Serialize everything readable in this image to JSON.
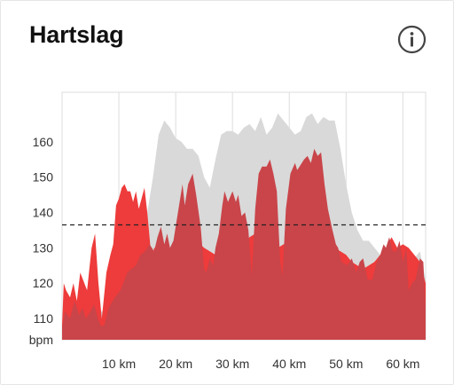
{
  "card": {
    "title": "Hartslag",
    "info_icon": "info-circle-icon"
  },
  "colors": {
    "primary_area": "#c9454a",
    "bright_area": "#ee3b3b",
    "comparison_area": "#d9d9d9",
    "average_line": "#222222",
    "grid": "#dddddd"
  },
  "chart_data": {
    "type": "area",
    "y_unit_label": "bpm",
    "ylim": [
      104,
      174
    ],
    "y_ticks": [
      110,
      120,
      130,
      140,
      150,
      160
    ],
    "y_tick_labels": [
      "110",
      "120",
      "130",
      "140",
      "150",
      "160"
    ],
    "xlim": [
      0,
      64
    ],
    "x_ticks": [
      10,
      20,
      30,
      40,
      50,
      60
    ],
    "x_tick_labels": [
      "10 km",
      "20 km",
      "30 km",
      "40 km",
      "50 km",
      "60 km"
    ],
    "average_line_value": 136.5,
    "grid": "vertical",
    "series": [
      {
        "key": "comparison",
        "x": [
          0,
          1,
          3,
          5,
          7,
          8,
          9,
          10,
          11,
          12,
          13,
          14,
          15,
          16,
          17,
          18,
          19,
          20,
          21,
          22,
          23,
          24,
          25,
          26,
          27,
          28,
          29,
          30,
          31,
          32,
          33,
          34,
          35,
          36,
          37,
          38,
          39,
          40,
          41,
          42,
          43,
          44,
          45,
          46,
          47,
          48,
          49,
          50,
          51,
          52,
          53,
          54,
          56,
          58,
          60,
          61,
          62,
          63,
          64
        ],
        "y": [
          108,
          112,
          111,
          114,
          112,
          113,
          115,
          118,
          120,
          122,
          124,
          130,
          140,
          150,
          162,
          166,
          164,
          161,
          160,
          158,
          158,
          156,
          150,
          147,
          155,
          162,
          163,
          163,
          162,
          164,
          165,
          163,
          167,
          162,
          164,
          168,
          166,
          164,
          162,
          163,
          167,
          168,
          165,
          167,
          166,
          166,
          158,
          148,
          140,
          135,
          132,
          132,
          128,
          128,
          128,
          125,
          127,
          129,
          121
        ]
      },
      {
        "key": "bright",
        "x": [
          0,
          0.3,
          0.7,
          1.4,
          2,
          2.6,
          3.2,
          4.4,
          5.2,
          5.8,
          6.4,
          7,
          7.8,
          8.5,
          9.0,
          9.5,
          10.0,
          10.5,
          11.0,
          11.5,
          12.0,
          12.5,
          13.0,
          13.5,
          14.0,
          14.5,
          15.0,
          15.8,
          16.2,
          17,
          18,
          19,
          20,
          21,
          23,
          25,
          27,
          28,
          29,
          30,
          31,
          33,
          35,
          36,
          38,
          40,
          42,
          43,
          45,
          46,
          47,
          48,
          50,
          51,
          53,
          55,
          56,
          57,
          58,
          59,
          60,
          61,
          62,
          63,
          64
        ],
        "y": [
          108,
          120,
          118,
          116,
          120,
          115,
          123,
          118,
          130,
          134,
          120,
          110,
          123,
          128,
          131,
          142,
          144,
          147,
          148,
          146,
          146,
          143,
          146,
          141,
          144,
          147,
          140,
          126,
          130,
          130,
          131,
          130,
          130,
          131,
          133,
          130,
          128,
          132,
          134,
          131,
          129,
          133,
          135,
          132,
          130,
          132,
          133,
          135,
          134,
          133,
          131,
          130,
          128,
          126,
          124,
          126,
          128,
          130,
          133,
          130,
          131,
          130,
          128,
          126,
          120
        ]
      },
      {
        "key": "primary",
        "x": [
          0,
          0.5,
          1.4,
          2.2,
          3,
          3.6,
          4.2,
          5,
          5.6,
          6.0,
          6.3,
          6.8,
          7.4,
          8.2,
          9.3,
          10.3,
          11.0,
          11.5,
          12.2,
          13,
          13.8,
          14.6,
          15.4,
          16.2,
          16.8,
          17.4,
          18.0,
          18.5,
          19.0,
          19.6,
          20.2,
          21.2,
          21.6,
          22.2,
          23.0,
          23.6,
          24.4,
          25.0,
          25.4,
          26.0,
          26.6,
          27.0,
          27.6,
          28.2,
          28.6,
          29.2,
          30.0,
          30.6,
          31.0,
          31.6,
          32.2,
          32.8,
          33.4,
          34.0,
          34.6,
          35.2,
          36.0,
          36.6,
          37.2,
          37.8,
          38.4,
          38.8,
          39.4,
          40.2,
          41.0,
          41.4,
          41.8,
          42.6,
          43.2,
          43.8,
          44.4,
          45.0,
          45.6,
          46.2,
          46.8,
          47.6,
          48.2,
          48.6,
          49.2,
          50.2,
          51.0,
          51.8,
          52.4,
          53.0,
          53.8,
          54.6,
          55.4,
          56.0,
          56.6,
          57.0,
          57.6,
          58.2,
          58.8,
          59.4,
          60.0,
          60.6,
          61.0,
          61.6,
          62.2,
          63.0,
          63.6,
          64.0
        ],
        "y": [
          107,
          112,
          110,
          115,
          111,
          113,
          110,
          112,
          114,
          112,
          110,
          108,
          108,
          113,
          116,
          118,
          121,
          123,
          124,
          125,
          128,
          129,
          131,
          129,
          133,
          136,
          131,
          134,
          130,
          132,
          138,
          148,
          142,
          148,
          151,
          145,
          136,
          124,
          123,
          127,
          125,
          130,
          134,
          142,
          146,
          143,
          146,
          143,
          145,
          139,
          140,
          135,
          122,
          141,
          151,
          153,
          153,
          155,
          151,
          146,
          126,
          122,
          141,
          151,
          154,
          152,
          153,
          155,
          156,
          154,
          158,
          156,
          157,
          148,
          141,
          135,
          131,
          130,
          126,
          125,
          127,
          123,
          126,
          127,
          121,
          121,
          126,
          128,
          131,
          130,
          133,
          129,
          129,
          132,
          126,
          130,
          118,
          120,
          121,
          127,
          126,
          112
        ]
      }
    ]
  }
}
